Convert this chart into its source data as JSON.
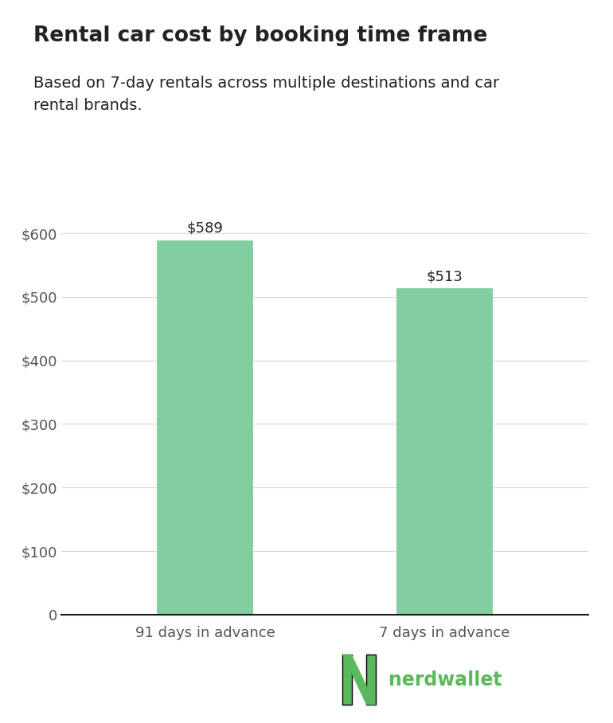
{
  "title": "Rental car cost by booking time frame",
  "subtitle": "Based on 7-day rentals across multiple destinations and car\nrental brands.",
  "categories": [
    "91 days in advance",
    "7 days in advance"
  ],
  "values": [
    589,
    513
  ],
  "bar_color": "#82CEA0",
  "bar_labels": [
    "$589",
    "$513"
  ],
  "yticks": [
    0,
    100,
    200,
    300,
    400,
    500,
    600
  ],
  "ytick_labels": [
    "0",
    "$100",
    "$200",
    "$300",
    "$400",
    "$500",
    "$600"
  ],
  "ylim": [
    0,
    660
  ],
  "background_color": "#ffffff",
  "title_fontsize": 19,
  "subtitle_fontsize": 14,
  "tick_fontsize": 13,
  "bar_label_fontsize": 13,
  "nerdwallet_green": "#5cb85c",
  "nerdwallet_text": "nerdwallet",
  "grid_color": "#d8d8d8",
  "text_color": "#222222",
  "tick_color": "#555555"
}
